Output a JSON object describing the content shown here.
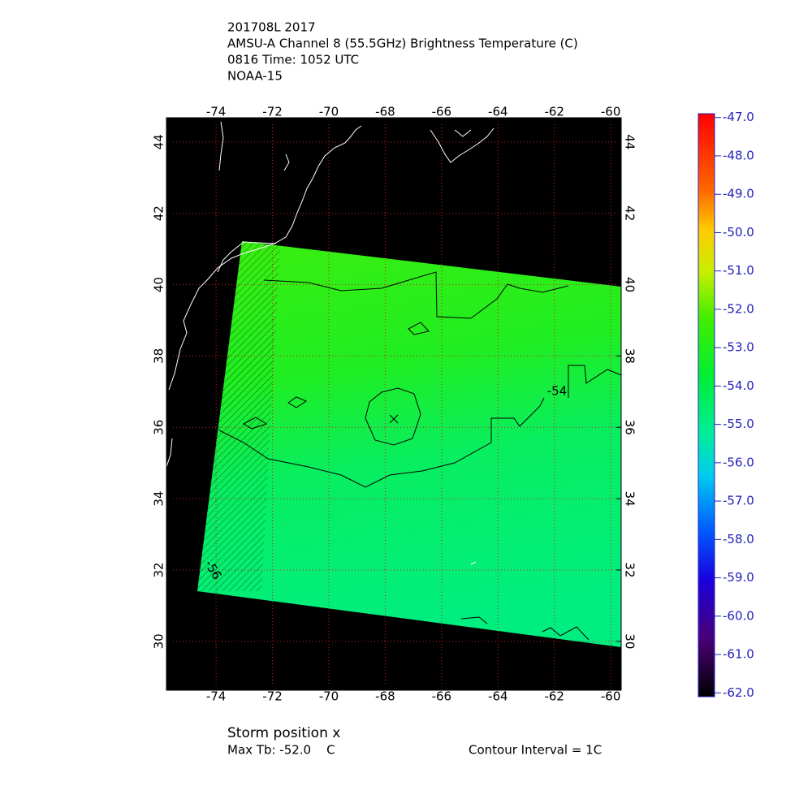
{
  "header": {
    "lines": [
      "201708L 2017",
      "AMSU-A Channel 8 (55.5GHz) Brightness Temperature (C)",
      "0816 Time: 1052 UTC",
      "NOAA-15"
    ]
  },
  "map": {
    "lon_ticks": [
      -74,
      -72,
      -70,
      -68,
      -66,
      -64,
      -62,
      -60
    ],
    "lat_ticks": [
      30,
      32,
      34,
      36,
      38,
      40,
      42,
      44
    ],
    "lon_range": [
      -75.76,
      -59.63
    ],
    "lat_range": [
      28.63,
      44.68
    ],
    "contour_labels": [
      "-54",
      "-56"
    ]
  },
  "colorbar": {
    "range": [
      -62.1,
      -46.9
    ],
    "ticks": [
      {
        "value": -47,
        "label": "-47.0"
      },
      {
        "value": -48,
        "label": "-48.0"
      },
      {
        "value": -49,
        "label": "-49.0"
      },
      {
        "value": -50,
        "label": "-50.0"
      },
      {
        "value": -51,
        "label": "-51.0"
      },
      {
        "value": -52,
        "label": "-52.0"
      },
      {
        "value": -53,
        "label": "-53.0"
      },
      {
        "value": -54,
        "label": "-54.0"
      },
      {
        "value": -55,
        "label": "-55.0"
      },
      {
        "value": -56,
        "label": "-56.0"
      },
      {
        "value": -57,
        "label": "-57.0"
      },
      {
        "value": -58,
        "label": "-58.0"
      },
      {
        "value": -59,
        "label": "-59.0"
      },
      {
        "value": -60,
        "label": "-60.0"
      },
      {
        "value": -61,
        "label": "-61.0"
      },
      {
        "value": -62,
        "label": "-62.0"
      }
    ]
  },
  "footer": {
    "storm": "Storm position x",
    "max_tb": "Max Tb: -52.0    C",
    "contour_interval": "Contour Interval = 1C"
  }
}
